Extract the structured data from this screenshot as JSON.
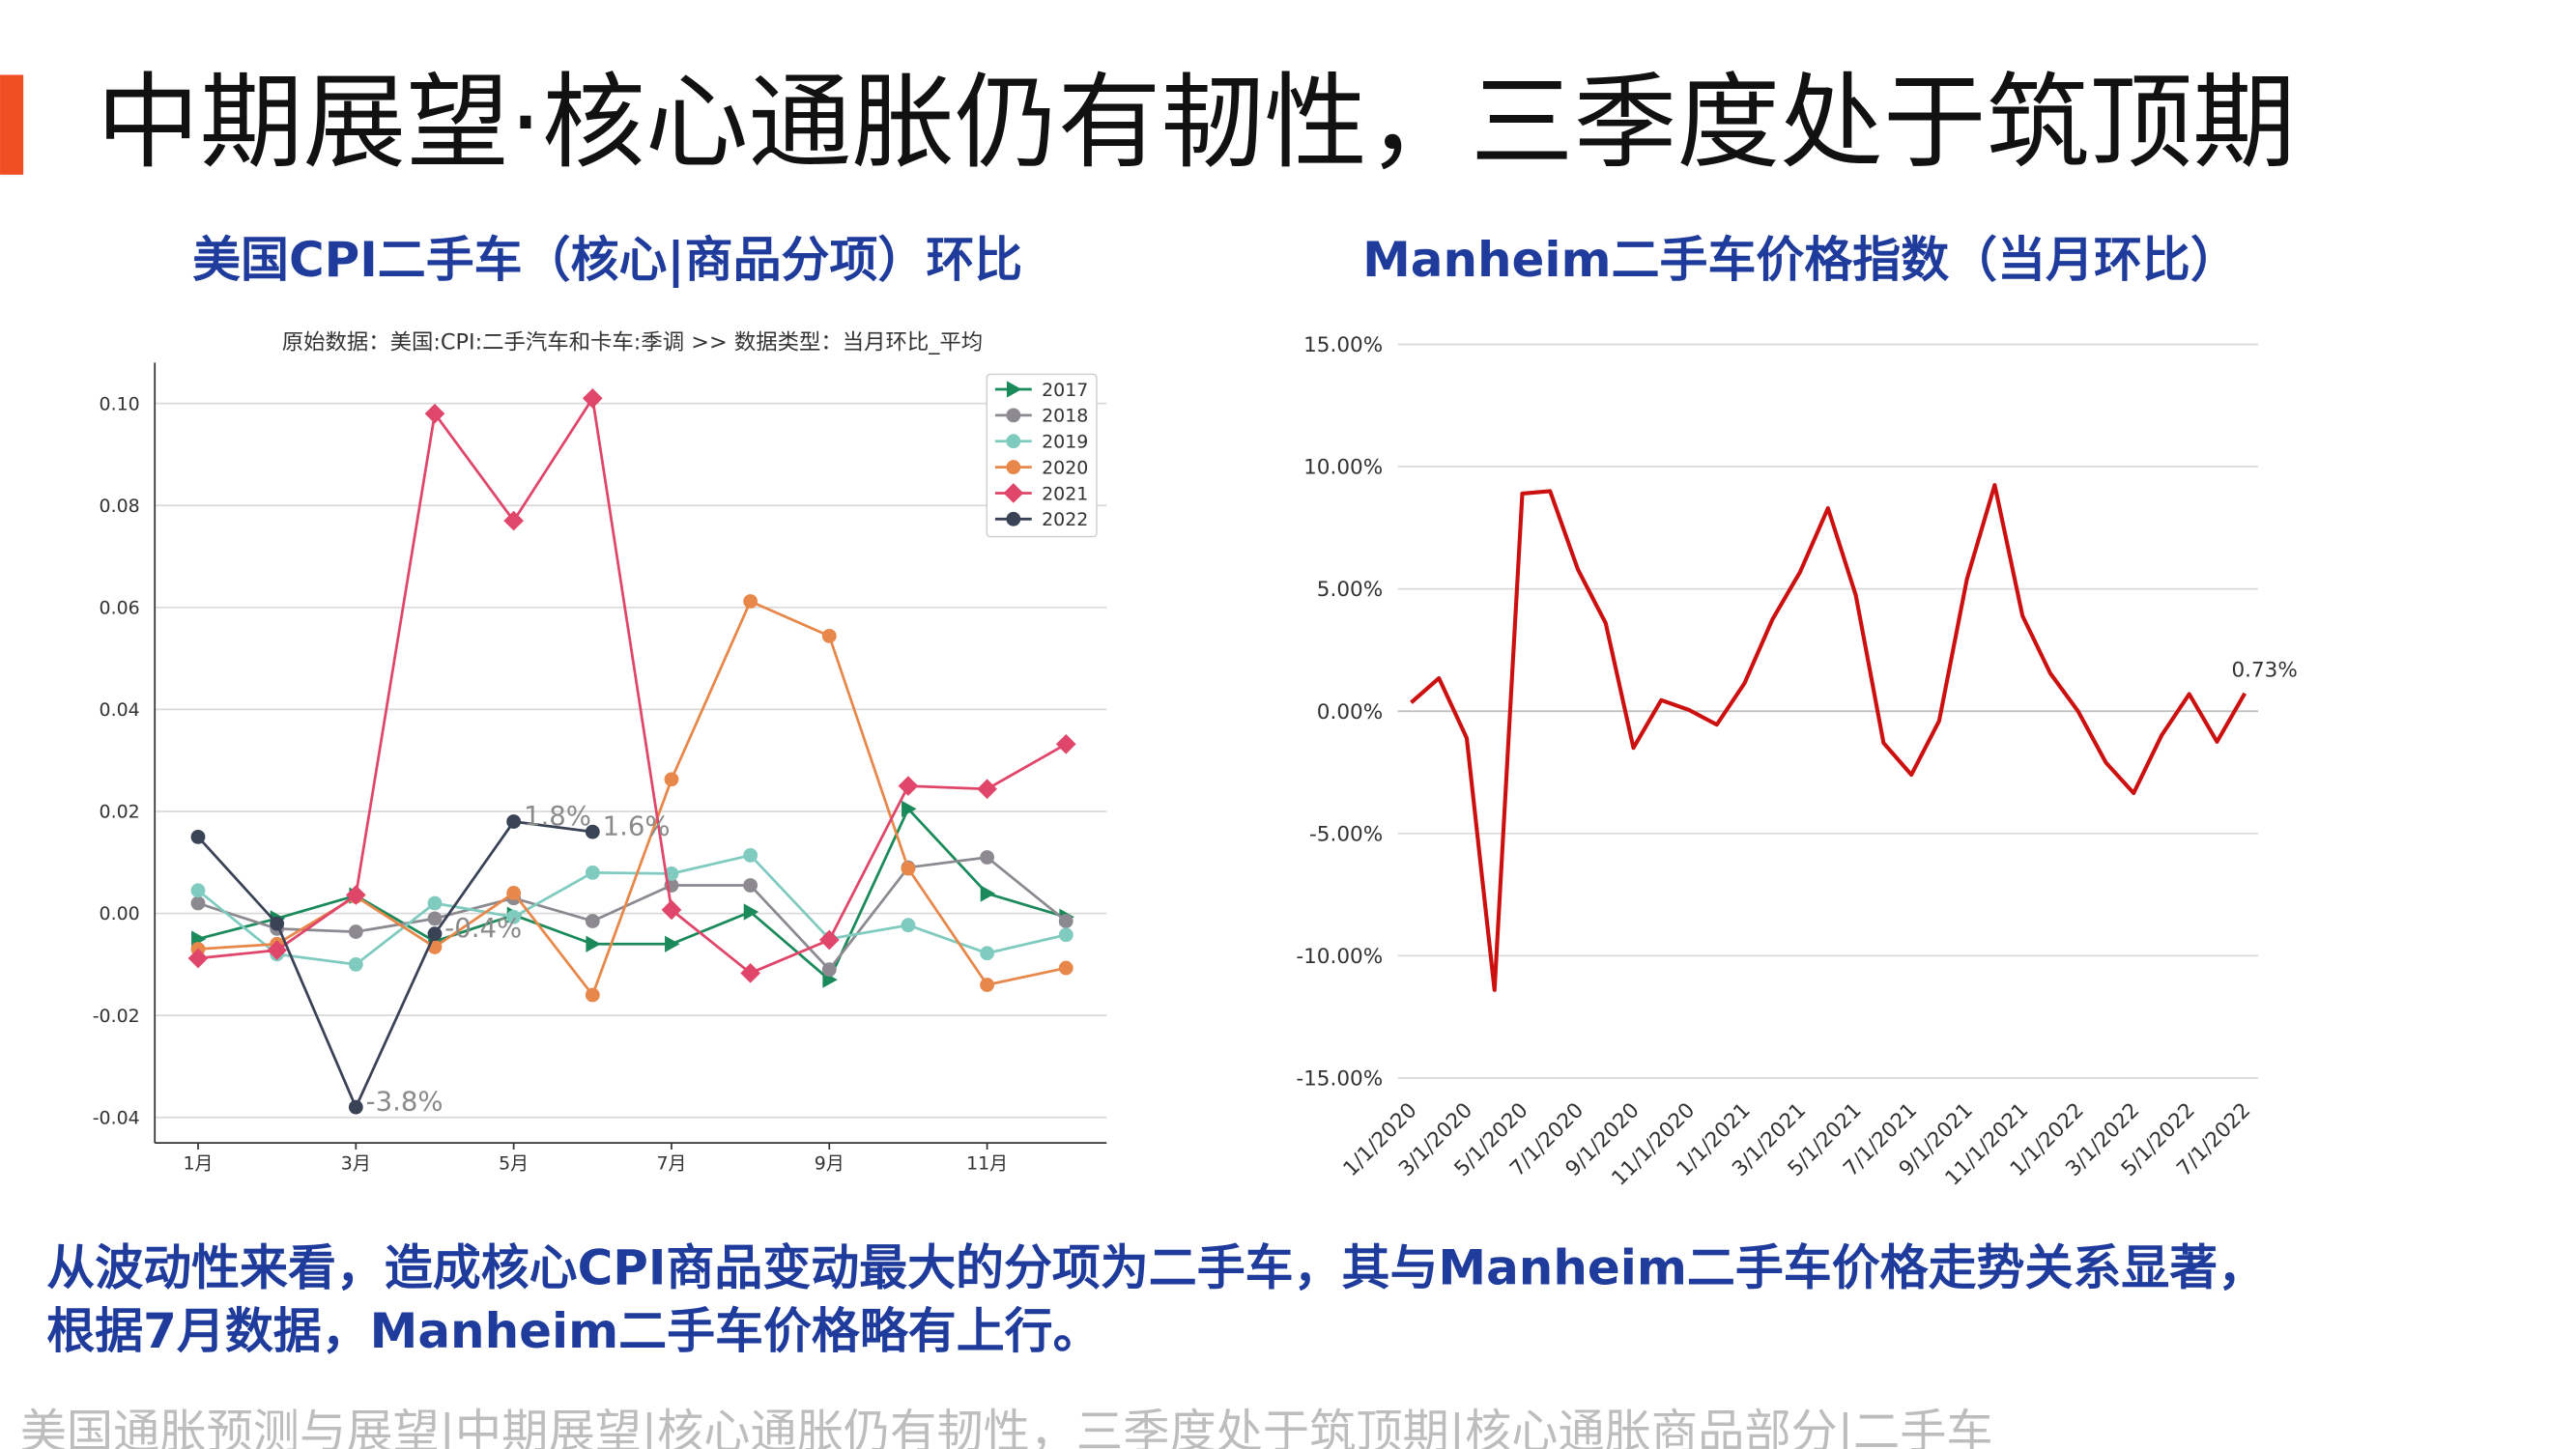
{
  "title": "中期展望·核心通胀仍有韧性，三季度处于筑顶期",
  "text": [
    "从波动性来看，造成核心CPI商品变动最大的分项为二手车，其与Manheim二手车价格走势关系显著，",
    "根据7月数据，Manheim二手车价格略有上行。"
  ],
  "footer": "美国通胀预测与展望|中期展望|核心通胀仍有韧性，三季度处于筑顶期|核心通胀商品部分|二手车",
  "chart_data": [
    {
      "type": "line",
      "title": "美国CPI二手车（核心|商品分项）环比",
      "subtitle": "原始数据：美国:CPI:二手汽车和卡车:季调 >> 数据类型：当月环比_平均",
      "categories": [
        "1月",
        null,
        "3月",
        null,
        "5月",
        null,
        "7月",
        null,
        "9月",
        null,
        "11月",
        null
      ],
      "series": [
        {
          "name": "2017",
          "color": "#1a8a5a",
          "marker": "triangle",
          "values": [
            -0.005,
            -0.001,
            0.0035,
            -0.0055,
            -0.0003,
            -0.006,
            -0.006,
            0.0003,
            -0.013,
            0.0205,
            0.0039,
            -0.0007
          ]
        },
        {
          "name": "2018",
          "color": "#8c8a90",
          "marker": "circle",
          "values": [
            0.002,
            -0.003,
            -0.0036,
            -0.001,
            0.003,
            -0.0015,
            0.0055,
            0.0055,
            -0.011,
            0.009,
            0.011,
            -0.0015
          ]
        },
        {
          "name": "2019",
          "color": "#80cbbf",
          "marker": "circle",
          "values": [
            0.0045,
            -0.008,
            -0.01,
            0.002,
            -0.0007,
            0.008,
            0.0078,
            0.0114,
            -0.005,
            -0.0023,
            -0.0078,
            -0.0042
          ]
        },
        {
          "name": "2020",
          "color": "#e8874a",
          "marker": "circle",
          "values": [
            -0.007,
            -0.006,
            0.0033,
            -0.0066,
            0.004,
            -0.016,
            0.0263,
            0.0612,
            0.0544,
            0.0088,
            -0.014,
            -0.0107
          ]
        },
        {
          "name": "2021",
          "color": "#e0456a",
          "marker": "diamond",
          "values": [
            -0.0088,
            -0.0072,
            0.0036,
            0.098,
            0.077,
            0.101,
            0.0007,
            -0.0117,
            -0.0052,
            0.025,
            0.0244,
            0.0332
          ]
        },
        {
          "name": "2022",
          "color": "#3a4256",
          "marker": "circle",
          "values": [
            0.015,
            -0.002,
            -0.038,
            -0.004,
            0.018,
            0.016,
            null,
            null,
            null,
            null,
            null,
            null
          ],
          "value_labels": [
            null,
            null,
            "-3.8%",
            "-0.4%",
            "1.8%",
            "1.6%",
            null,
            null,
            null,
            null,
            null,
            null
          ]
        }
      ],
      "ylim": [
        -0.045,
        0.108
      ],
      "yticks": [
        {
          "value": -0.04,
          "label": "-0.04"
        },
        {
          "value": -0.02,
          "label": "-0.02"
        },
        {
          "value": 0,
          "label": "0.00"
        },
        {
          "value": 0.02,
          "label": "0.02"
        },
        {
          "value": 0.04,
          "label": "0.04"
        },
        {
          "value": 0.06,
          "label": "0.06"
        },
        {
          "value": 0.08,
          "label": "0.08"
        },
        {
          "value": 0.1,
          "label": "0.10"
        }
      ],
      "grid": true,
      "legend": "upper right"
    },
    {
      "type": "line",
      "title": "Manheim二手车价格指数（当月环比）",
      "categories": [
        "1/1/2020",
        null,
        "3/1/2020",
        null,
        "5/1/2020",
        null,
        "7/1/2020",
        null,
        "9/1/2020",
        null,
        "11/1/2020",
        null,
        "1/1/2021",
        null,
        "3/1/2021",
        null,
        "5/1/2021",
        null,
        "7/1/2021",
        null,
        "9/1/2021",
        null,
        "11/1/2021",
        null,
        "1/1/2022",
        null,
        "3/1/2022",
        null,
        "5/1/2022",
        null,
        "7/1/2022"
      ],
      "values": [
        0.35,
        1.35,
        -1.1,
        -11.4,
        8.9,
        9.0,
        5.8,
        3.6,
        -1.5,
        0.45,
        0.05,
        -0.55,
        1.15,
        3.75,
        5.7,
        8.3,
        4.75,
        -1.3,
        -2.6,
        -0.4,
        5.4,
        9.25,
        3.9,
        1.55,
        0.0,
        -2.1,
        -3.35,
        -1.0,
        0.7,
        -1.25,
        0.73
      ],
      "value_labels": [
        null,
        null,
        null,
        null,
        null,
        null,
        null,
        null,
        null,
        null,
        null,
        null,
        null,
        null,
        null,
        null,
        null,
        null,
        null,
        null,
        null,
        null,
        null,
        null,
        null,
        null,
        null,
        null,
        null,
        null,
        "0.73%"
      ],
      "color": "#cc1010",
      "ylim": [
        -15,
        15
      ],
      "yticks": [
        {
          "value": -15,
          "label": "-15.00%"
        },
        {
          "value": -10,
          "label": "-10.00%"
        },
        {
          "value": -5,
          "label": "-5.00%"
        },
        {
          "value": 0,
          "label": "0.00%"
        },
        {
          "value": 5,
          "label": "5.00%"
        },
        {
          "value": 10,
          "label": "10.00%"
        },
        {
          "value": 15,
          "label": "15.00%"
        }
      ],
      "grid": true
    }
  ]
}
